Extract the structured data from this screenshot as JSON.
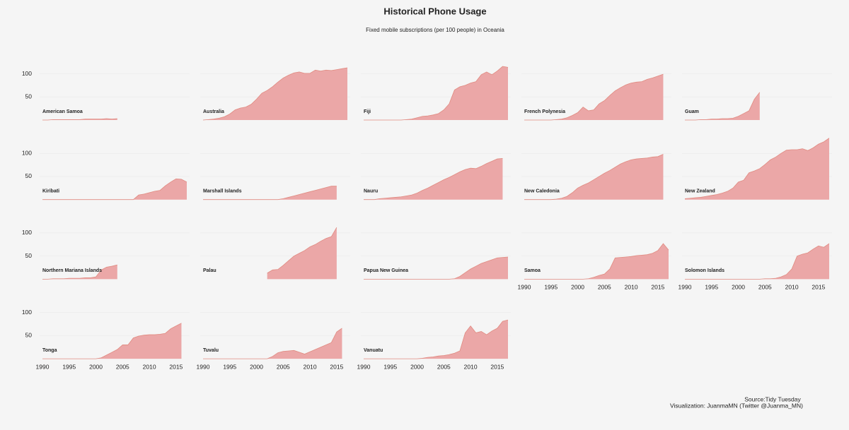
{
  "chart_data": {
    "type": "area",
    "title": "Historical Phone Usage",
    "subtitle": "Fixed mobile subscriptions (per 100 people) in Oceania",
    "source": "Source:Tidy Tuesday",
    "credit": "Visualization: JuanmaMN (Twitter @Juanma_MN)",
    "color": "#eba7a7",
    "line_color": "#e08a80",
    "grid": true,
    "x": [
      1990,
      1991,
      1992,
      1993,
      1994,
      1995,
      1996,
      1997,
      1998,
      1999,
      2000,
      2001,
      2002,
      2003,
      2004,
      2005,
      2006,
      2007,
      2008,
      2009,
      2010,
      2011,
      2012,
      2013,
      2014,
      2015,
      2016,
      2017
    ],
    "xlim": [
      1990,
      2017
    ],
    "xticks": [
      1990,
      1995,
      2000,
      2005,
      2010,
      2015
    ],
    "ylim": [
      0,
      135
    ],
    "yticks": [
      50,
      100
    ],
    "series": [
      {
        "name": "American Samoa",
        "values": [
          0,
          0,
          1,
          1,
          1,
          1,
          1,
          1,
          2,
          2,
          2,
          2,
          3,
          2,
          3,
          null,
          null,
          null,
          null,
          null,
          null,
          null,
          null,
          null,
          null,
          null,
          null,
          null
        ]
      },
      {
        "name": "Australia",
        "values": [
          0,
          1,
          2,
          4,
          7,
          13,
          22,
          26,
          28,
          34,
          45,
          58,
          64,
          72,
          82,
          91,
          97,
          102,
          104,
          101,
          101,
          108,
          106,
          108,
          107,
          109,
          111,
          113
        ]
      },
      {
        "name": "Fiji",
        "values": [
          0,
          0,
          0,
          0,
          0,
          0,
          0,
          0,
          1,
          2,
          5,
          8,
          9,
          11,
          14,
          22,
          35,
          65,
          72,
          75,
          80,
          83,
          98,
          104,
          98,
          106,
          116,
          114
        ]
      },
      {
        "name": "French Polynesia",
        "values": [
          0,
          0,
          0,
          0,
          0,
          0,
          1,
          2,
          5,
          10,
          16,
          28,
          20,
          22,
          35,
          42,
          53,
          63,
          70,
          76,
          80,
          82,
          83,
          88,
          91,
          95,
          99,
          null
        ]
      },
      {
        "name": "Guam",
        "values": [
          0,
          0,
          0,
          1,
          1,
          2,
          2,
          3,
          3,
          4,
          8,
          14,
          20,
          45,
          60,
          null,
          null,
          null,
          null,
          null,
          null,
          null,
          null,
          null,
          null,
          null,
          null,
          null
        ]
      },
      {
        "name": "Kiribati",
        "values": [
          0,
          0,
          0,
          0,
          0,
          0,
          0,
          0,
          0,
          0,
          0,
          0,
          0,
          0,
          0,
          0,
          0,
          0,
          10,
          12,
          15,
          18,
          20,
          30,
          38,
          45,
          44,
          38
        ]
      },
      {
        "name": "Marshall Islands",
        "values": [
          0,
          0,
          0,
          0,
          0,
          0,
          0,
          0,
          0,
          0,
          0,
          0,
          0,
          0,
          0,
          2,
          5,
          8,
          11,
          14,
          17,
          20,
          23,
          26,
          29,
          29,
          null,
          null
        ]
      },
      {
        "name": "Nauru",
        "values": [
          0,
          0,
          0,
          2,
          3,
          4,
          5,
          6,
          8,
          10,
          14,
          20,
          25,
          31,
          37,
          43,
          48,
          54,
          60,
          65,
          68,
          67,
          72,
          78,
          83,
          88,
          89,
          null
        ]
      },
      {
        "name": "New Caledonia",
        "values": [
          0,
          0,
          0,
          0,
          0,
          0,
          1,
          3,
          7,
          15,
          25,
          31,
          36,
          43,
          50,
          57,
          63,
          70,
          77,
          82,
          86,
          88,
          89,
          90,
          92,
          93,
          98,
          null
        ]
      },
      {
        "name": "New Zealand",
        "values": [
          2,
          3,
          4,
          5,
          7,
          9,
          11,
          14,
          18,
          25,
          38,
          42,
          58,
          62,
          67,
          76,
          86,
          92,
          100,
          107,
          108,
          108,
          110,
          106,
          112,
          120,
          125,
          133
        ]
      },
      {
        "name": "Northern Mariana Islands",
        "values": [
          0,
          0,
          1,
          1,
          1,
          2,
          2,
          2,
          3,
          3,
          5,
          20,
          26,
          28,
          31,
          null,
          null,
          null,
          null,
          null,
          null,
          null,
          null,
          null,
          null,
          null,
          null,
          null
        ]
      },
      {
        "name": "Palau",
        "values": [
          null,
          null,
          null,
          null,
          null,
          null,
          null,
          null,
          null,
          null,
          null,
          null,
          13,
          20,
          21,
          30,
          40,
          50,
          56,
          62,
          70,
          75,
          82,
          88,
          92,
          112,
          null,
          null
        ]
      },
      {
        "name": "Papua New Guinea",
        "values": [
          0,
          0,
          0,
          0,
          0,
          0,
          0,
          0,
          0,
          0,
          0,
          0,
          0,
          0,
          0,
          0,
          0,
          1,
          6,
          14,
          22,
          28,
          34,
          38,
          42,
          46,
          47,
          48
        ]
      },
      {
        "name": "Samoa",
        "values": [
          0,
          0,
          0,
          0,
          0,
          0,
          0,
          0,
          0,
          0,
          0,
          0,
          1,
          4,
          8,
          11,
          22,
          46,
          47,
          48,
          49,
          51,
          52,
          53,
          56,
          62,
          77,
          63
        ]
      },
      {
        "name": "Solomon Islands",
        "values": [
          0,
          0,
          0,
          0,
          0,
          0,
          0,
          0,
          0,
          0,
          0,
          0,
          0,
          0,
          0,
          1,
          1,
          2,
          5,
          10,
          22,
          50,
          54,
          57,
          65,
          72,
          69,
          77
        ]
      },
      {
        "name": "Tonga",
        "values": [
          0,
          0,
          0,
          0,
          0,
          0,
          0,
          0,
          0,
          0,
          0,
          2,
          8,
          14,
          20,
          30,
          30,
          45,
          49,
          51,
          52,
          52,
          53,
          55,
          65,
          71,
          77,
          null
        ]
      },
      {
        "name": "Tuvalu",
        "values": [
          0,
          0,
          0,
          0,
          0,
          0,
          0,
          0,
          0,
          0,
          0,
          0,
          0,
          5,
          13,
          16,
          17,
          18,
          14,
          10,
          15,
          20,
          25,
          30,
          35,
          58,
          66,
          null
        ]
      },
      {
        "name": "Vanuatu",
        "values": [
          0,
          0,
          0,
          0,
          0,
          0,
          0,
          0,
          0,
          0,
          0,
          1,
          3,
          4,
          6,
          7,
          9,
          12,
          17,
          56,
          71,
          56,
          59,
          52,
          60,
          66,
          81,
          84
        ]
      }
    ]
  }
}
